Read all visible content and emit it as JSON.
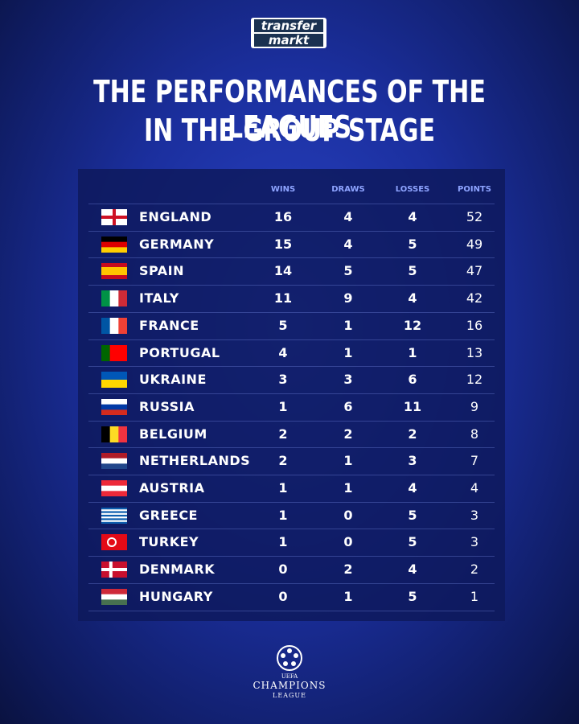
{
  "logo": {
    "line1": "transfer",
    "line2": "markt"
  },
  "title": {
    "line1": "THE PERFORMANCES OF THE LEAGUES",
    "line2": "IN THE GROUP STAGE"
  },
  "table": {
    "headers": [
      "WINS",
      "DRAWS",
      "LOSSES",
      "POINTS"
    ],
    "rows": [
      [
        "ENGLAND",
        16,
        4,
        4,
        52
      ],
      [
        "GERMANY",
        15,
        4,
        5,
        49
      ],
      [
        "SPAIN",
        14,
        5,
        5,
        47
      ],
      [
        "ITALY",
        11,
        9,
        4,
        42
      ],
      [
        "FRANCE",
        5,
        1,
        12,
        16
      ],
      [
        "PORTUGAL",
        4,
        1,
        1,
        13
      ],
      [
        "UKRAINE",
        3,
        3,
        6,
        12
      ],
      [
        "RUSSIA",
        1,
        6,
        11,
        9
      ],
      [
        "BELGIUM",
        2,
        2,
        2,
        8
      ],
      [
        "NETHERLANDS",
        2,
        1,
        3,
        7
      ],
      [
        "AUSTRIA",
        1,
        1,
        4,
        4
      ],
      [
        "GREECE",
        1,
        0,
        5,
        3
      ],
      [
        "TURKEY",
        1,
        0,
        5,
        3
      ],
      [
        "DENMARK",
        0,
        2,
        4,
        2
      ],
      [
        "HUNGARY",
        0,
        1,
        5,
        1
      ]
    ]
  },
  "footer": {
    "top": "UEFA",
    "middle": "CHAMPIONS",
    "bottom": "LEAGUE"
  }
}
